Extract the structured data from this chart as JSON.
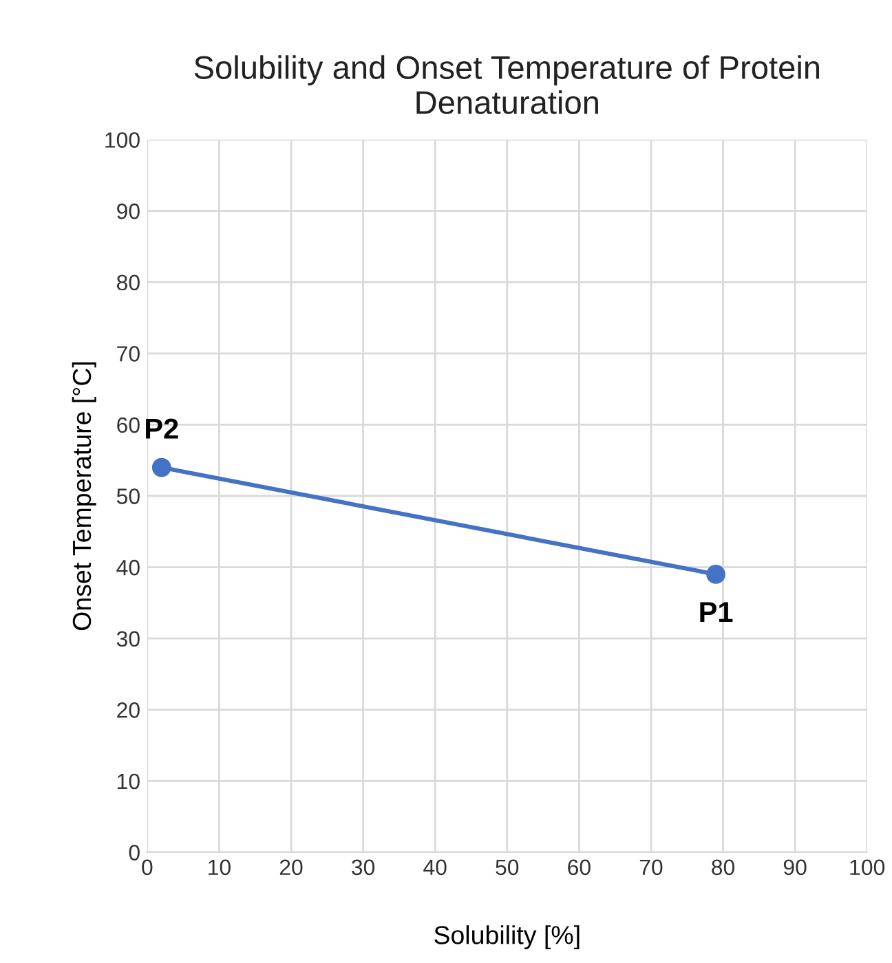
{
  "chart_data": {
    "type": "line",
    "title": "Solubility and Onset Temperature of Protein Denaturation",
    "xlabel": "Solubility [%]",
    "ylabel": "Onset Temperature [°C]",
    "series": [
      {
        "color": "#4472c4",
        "x": [
          2,
          79
        ],
        "values": [
          54,
          39
        ]
      }
    ],
    "annotations": [
      {
        "text": "P2",
        "x": 2,
        "y": 54
      },
      {
        "text": "P1",
        "x": 79,
        "y": 39
      }
    ],
    "xlim": [
      0,
      100
    ],
    "xticks": [
      0,
      10,
      20,
      30,
      40,
      50,
      60,
      70,
      80,
      90,
      100
    ],
    "ylim": [
      0,
      100
    ],
    "yticks": [
      0,
      10,
      20,
      30,
      40,
      50,
      60,
      70,
      80,
      90,
      100
    ],
    "grid": true,
    "marker": "circle",
    "line_style": "solid"
  }
}
